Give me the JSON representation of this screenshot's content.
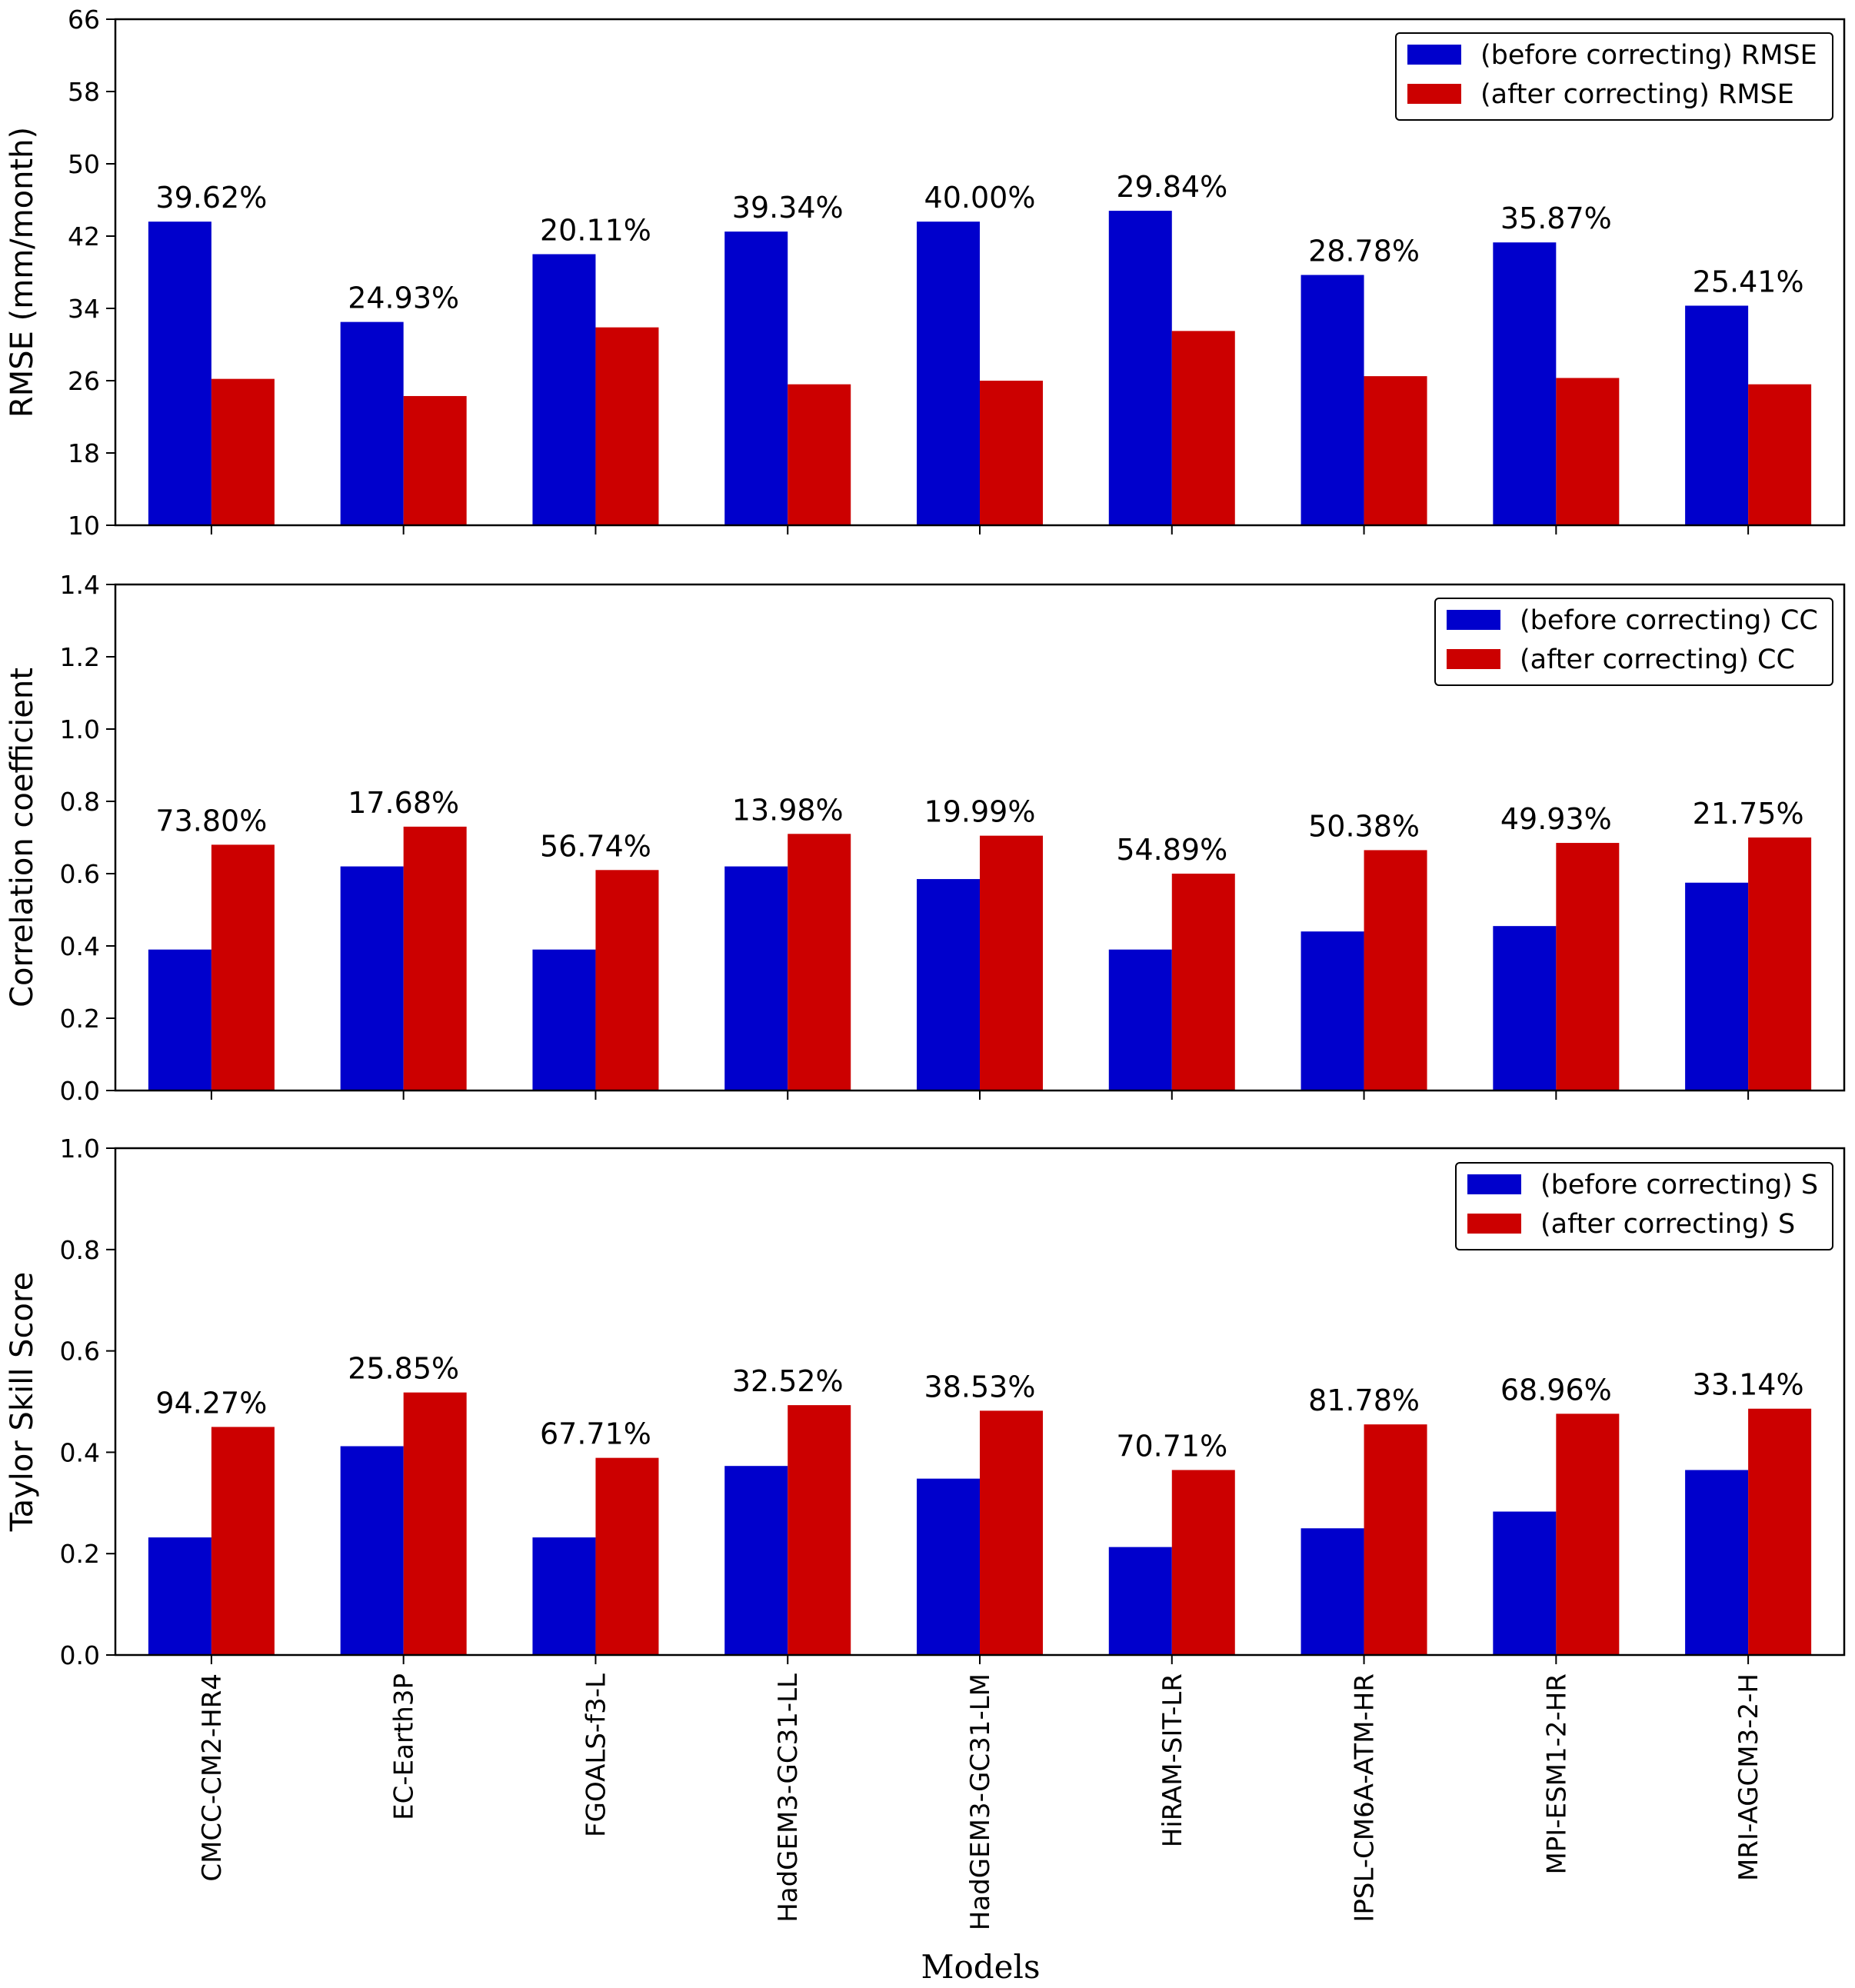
{
  "figure": {
    "xlabel": "Models",
    "categories": [
      "CMCC-CM2-HR4",
      "EC-Earth3P",
      "FGOALS-f3-L",
      "HadGEM3-GC31-LL",
      "HadGEM3-GC31-LM",
      "HiRAM-SIT-LR",
      "IPSL-CM6A-ATM-HR",
      "MPI-ESM1-2-HR",
      "MRI-AGCM3-2-H"
    ]
  },
  "colors": {
    "before": "#0000cc",
    "after": "#cc0000"
  },
  "chart_data": [
    {
      "type": "bar",
      "title": "",
      "ylabel": "RMSE (mm/month)",
      "xlabel": "",
      "ylim": [
        10,
        66
      ],
      "yticks": [
        "10",
        "18",
        "26",
        "34",
        "42",
        "50",
        "58",
        "66"
      ],
      "legend_position": "top-right",
      "categories": [
        "CMCC-CM2-HR4",
        "EC-Earth3P",
        "FGOALS-f3-L",
        "HadGEM3-GC31-LL",
        "HadGEM3-GC31-LM",
        "HiRAM-SIT-LR",
        "IPSL-CM6A-ATM-HR",
        "MPI-ESM1-2-HR",
        "MRI-AGCM3-2-H"
      ],
      "series": [
        {
          "name": "(before correcting) RMSE",
          "values": [
            43.6,
            32.5,
            40.0,
            42.5,
            43.6,
            44.8,
            37.7,
            41.3,
            34.3
          ]
        },
        {
          "name": "(after correcting) RMSE",
          "values": [
            26.2,
            24.3,
            31.9,
            25.6,
            26.0,
            31.5,
            26.5,
            26.3,
            25.6
          ]
        }
      ],
      "annotations": [
        "39.62%",
        "24.93%",
        "20.11%",
        "39.34%",
        "40.00%",
        "29.84%",
        "28.78%",
        "35.87%",
        "25.41%"
      ]
    },
    {
      "type": "bar",
      "title": "",
      "ylabel": "Correlation coefficient",
      "xlabel": "",
      "ylim": [
        0.0,
        1.4
      ],
      "yticks": [
        "0.0",
        "0.2",
        "0.4",
        "0.6",
        "0.8",
        "1.0",
        "1.2",
        "1.4"
      ],
      "legend_position": "top-right",
      "categories": [
        "CMCC-CM2-HR4",
        "EC-Earth3P",
        "FGOALS-f3-L",
        "HadGEM3-GC31-LL",
        "HadGEM3-GC31-LM",
        "HiRAM-SIT-LR",
        "IPSL-CM6A-ATM-HR",
        "MPI-ESM1-2-HR",
        "MRI-AGCM3-2-H"
      ],
      "series": [
        {
          "name": "(before correcting) CC",
          "values": [
            0.39,
            0.62,
            0.39,
            0.62,
            0.585,
            0.39,
            0.44,
            0.455,
            0.575
          ]
        },
        {
          "name": "(after correcting) CC",
          "values": [
            0.68,
            0.73,
            0.61,
            0.71,
            0.705,
            0.6,
            0.665,
            0.685,
            0.7
          ]
        }
      ],
      "annotations": [
        "73.80%",
        "17.68%",
        "56.74%",
        "13.98%",
        "19.99%",
        "54.89%",
        "50.38%",
        "49.93%",
        "21.75%"
      ]
    },
    {
      "type": "bar",
      "title": "",
      "ylabel": "Taylor Skill Score",
      "xlabel": "Models",
      "ylim": [
        0.0,
        1.0
      ],
      "yticks": [
        "0.0",
        "0.2",
        "0.4",
        "0.6",
        "0.8",
        "1.0"
      ],
      "legend_position": "top-right",
      "categories": [
        "CMCC-CM2-HR4",
        "EC-Earth3P",
        "FGOALS-f3-L",
        "HadGEM3-GC31-LL",
        "HadGEM3-GC31-LM",
        "HiRAM-SIT-LR",
        "IPSL-CM6A-ATM-HR",
        "MPI-ESM1-2-HR",
        "MRI-AGCM3-2-H"
      ],
      "series": [
        {
          "name": "(before correcting) S",
          "values": [
            0.232,
            0.412,
            0.232,
            0.373,
            0.348,
            0.213,
            0.25,
            0.283,
            0.365
          ]
        },
        {
          "name": "(after correcting) S",
          "values": [
            0.45,
            0.518,
            0.389,
            0.493,
            0.482,
            0.365,
            0.455,
            0.476,
            0.486
          ]
        }
      ],
      "annotations": [
        "94.27%",
        "25.85%",
        "67.71%",
        "32.52%",
        "38.53%",
        "70.71%",
        "81.78%",
        "68.96%",
        "33.14%"
      ]
    }
  ]
}
